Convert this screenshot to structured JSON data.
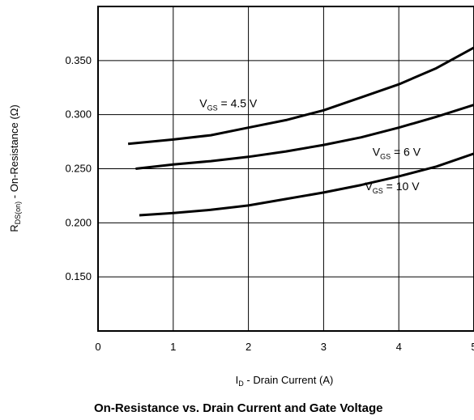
{
  "chart_data": {
    "type": "line",
    "title": "On-Resistance vs. Drain Current and Gate Voltage",
    "xlabel": {
      "main": "I",
      "sub": "D",
      "rest": " - Drain Current (A)"
    },
    "ylabel": {
      "main": "R",
      "sub": "DS(on)",
      "rest": " - On-Resistance (Ω)"
    },
    "xlim": [
      0,
      5
    ],
    "ylim": [
      0.1,
      0.4
    ],
    "grid": true,
    "x_ticks": [
      "0",
      "1",
      "2",
      "3",
      "4",
      "5"
    ],
    "y_ticks": [
      "0.150",
      "0.200",
      "0.250",
      "0.300",
      "0.350"
    ],
    "series": [
      {
        "name": "VGS = 4.5 V",
        "label": {
          "main": "V",
          "sub": "GS",
          "rest": " = 4.5 V"
        },
        "x": [
          0.4,
          1.0,
          1.5,
          2.0,
          2.5,
          3.0,
          3.5,
          4.0,
          4.5,
          5.0
        ],
        "y": [
          0.273,
          0.277,
          0.281,
          0.288,
          0.295,
          0.304,
          0.316,
          0.328,
          0.343,
          0.362
        ]
      },
      {
        "name": "VGS = 6 V",
        "label": {
          "main": "V",
          "sub": "GS",
          "rest": " = 6 V"
        },
        "x": [
          0.5,
          1.0,
          1.5,
          2.0,
          2.5,
          3.0,
          3.5,
          4.0,
          4.5,
          5.0
        ],
        "y": [
          0.25,
          0.254,
          0.257,
          0.261,
          0.266,
          0.272,
          0.279,
          0.288,
          0.298,
          0.309
        ]
      },
      {
        "name": "VGS = 10 V",
        "label": {
          "main": "V",
          "sub": "GS",
          "rest": " = 10 V"
        },
        "x": [
          0.55,
          1.0,
          1.5,
          2.0,
          2.5,
          3.0,
          3.5,
          4.0,
          4.5,
          5.0
        ],
        "y": [
          0.207,
          0.209,
          0.212,
          0.216,
          0.222,
          0.228,
          0.235,
          0.243,
          0.252,
          0.264
        ]
      }
    ]
  }
}
